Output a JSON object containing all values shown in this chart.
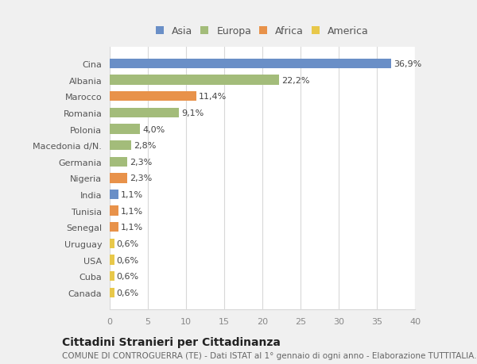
{
  "categories": [
    "Canada",
    "Cuba",
    "USA",
    "Uruguay",
    "Senegal",
    "Tunisia",
    "India",
    "Nigeria",
    "Germania",
    "Macedonia d/N.",
    "Polonia",
    "Romania",
    "Marocco",
    "Albania",
    "Cina"
  ],
  "values": [
    0.6,
    0.6,
    0.6,
    0.6,
    1.1,
    1.1,
    1.1,
    2.3,
    2.3,
    2.8,
    4.0,
    9.1,
    11.4,
    22.2,
    36.9
  ],
  "labels": [
    "0,6%",
    "0,6%",
    "0,6%",
    "0,6%",
    "1,1%",
    "1,1%",
    "1,1%",
    "2,3%",
    "2,3%",
    "2,8%",
    "4,0%",
    "9,1%",
    "11,4%",
    "22,2%",
    "36,9%"
  ],
  "colors": [
    "#e8c84a",
    "#e8c84a",
    "#e8c84a",
    "#e8c84a",
    "#e8924a",
    "#e8924a",
    "#6a8fc7",
    "#e8924a",
    "#a3bc7a",
    "#a3bc7a",
    "#a3bc7a",
    "#a3bc7a",
    "#e8924a",
    "#a3bc7a",
    "#6a8fc7"
  ],
  "legend_labels": [
    "Asia",
    "Europa",
    "Africa",
    "America"
  ],
  "legend_colors": [
    "#6a8fc7",
    "#a3bc7a",
    "#e8924a",
    "#e8c84a"
  ],
  "title": "Cittadini Stranieri per Cittadinanza",
  "subtitle": "COMUNE DI CONTROGUERRA (TE) - Dati ISTAT al 1° gennaio di ogni anno - Elaborazione TUTTITALIA.IT",
  "xlim": [
    0,
    40
  ],
  "xticks": [
    0,
    5,
    10,
    15,
    20,
    25,
    30,
    35,
    40
  ],
  "background_color": "#f0f0f0",
  "plot_bg_color": "#ffffff",
  "grid_color": "#d8d8d8",
  "bar_height": 0.6,
  "label_fontsize": 8,
  "tick_fontsize": 8,
  "title_fontsize": 10,
  "subtitle_fontsize": 7.5
}
